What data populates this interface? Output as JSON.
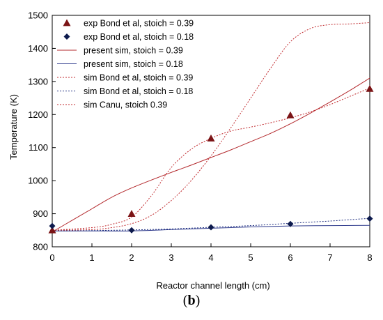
{
  "caption": {
    "open": "(",
    "letter": "b",
    "close": ")"
  },
  "chart_data": {
    "type": "line",
    "xlabel": "Reactor channel length (cm)",
    "ylabel": "Temperature (K)",
    "xlim": [
      0,
      8
    ],
    "ylim": [
      800,
      1500
    ],
    "xticks": [
      "0",
      "1",
      "2",
      "3",
      "4",
      "5",
      "6",
      "7",
      "8"
    ],
    "yticks": [
      "800",
      "900",
      "1000",
      "1100",
      "1200",
      "1300",
      "1400",
      "1500"
    ],
    "grid": false,
    "legend_position": "top-left",
    "series": [
      {
        "name": "exp Bond et al, stoich = 0.39",
        "kind": "marker",
        "marker": "triangle",
        "color": "#7b1416",
        "x": [
          0,
          2,
          4,
          6,
          8
        ],
        "y": [
          850,
          900,
          1128,
          1198,
          1278
        ]
      },
      {
        "name": "exp Bond et al, stoich = 0.18",
        "kind": "marker",
        "marker": "diamond",
        "color": "#0d1a4d",
        "x": [
          0,
          2,
          4,
          6,
          8
        ],
        "y": [
          863,
          850,
          859,
          869,
          885
        ]
      },
      {
        "name": "present sim, stoich = 0.39",
        "kind": "line",
        "dash": "solid",
        "color": "#b3282c",
        "x": [
          0,
          0.5,
          1,
          1.5,
          2,
          2.5,
          3,
          3.5,
          4,
          4.5,
          5,
          5.5,
          6,
          6.5,
          7,
          7.5,
          8
        ],
        "y": [
          845,
          880,
          915,
          950,
          978,
          1002,
          1025,
          1047,
          1070,
          1093,
          1118,
          1143,
          1172,
          1204,
          1238,
          1273,
          1310
        ]
      },
      {
        "name": "present sim, stoich = 0.18",
        "kind": "line",
        "dash": "solid",
        "color": "#2e3a8c",
        "x": [
          0,
          1,
          2,
          3,
          4,
          5,
          6,
          7,
          8
        ],
        "y": [
          848,
          848,
          848,
          852,
          856,
          860,
          863,
          864,
          865
        ]
      },
      {
        "name": "sim Bond et al, stoich = 0.39",
        "kind": "line",
        "dash": "dotted",
        "color": "#c0282c",
        "x": [
          0,
          1,
          1.5,
          2,
          2.5,
          3,
          3.5,
          4,
          4.5,
          5,
          5.5,
          6,
          6.5,
          7,
          7.5,
          8
        ],
        "y": [
          850,
          858,
          868,
          890,
          955,
          1040,
          1095,
          1128,
          1150,
          1162,
          1175,
          1190,
          1208,
          1230,
          1255,
          1280
        ]
      },
      {
        "name": "sim Bond et al, stoich = 0.18",
        "kind": "line",
        "dash": "dotted",
        "color": "#1f2f80",
        "x": [
          0,
          1,
          2,
          3,
          4,
          5,
          6,
          7,
          8
        ],
        "y": [
          848,
          849,
          851,
          854,
          859,
          864,
          871,
          878,
          886
        ]
      },
      {
        "name": "sim Canu, stoich 0.39",
        "kind": "line",
        "dash": "dotted",
        "color": "#c0282c",
        "x": [
          0,
          1,
          1.5,
          2,
          2.5,
          3,
          3.5,
          4,
          4.5,
          5,
          5.5,
          6,
          6.5,
          7,
          7.5,
          8
        ],
        "y": [
          850,
          852,
          858,
          870,
          895,
          940,
          1000,
          1075,
          1160,
          1250,
          1340,
          1420,
          1460,
          1472,
          1474,
          1478
        ]
      }
    ]
  }
}
